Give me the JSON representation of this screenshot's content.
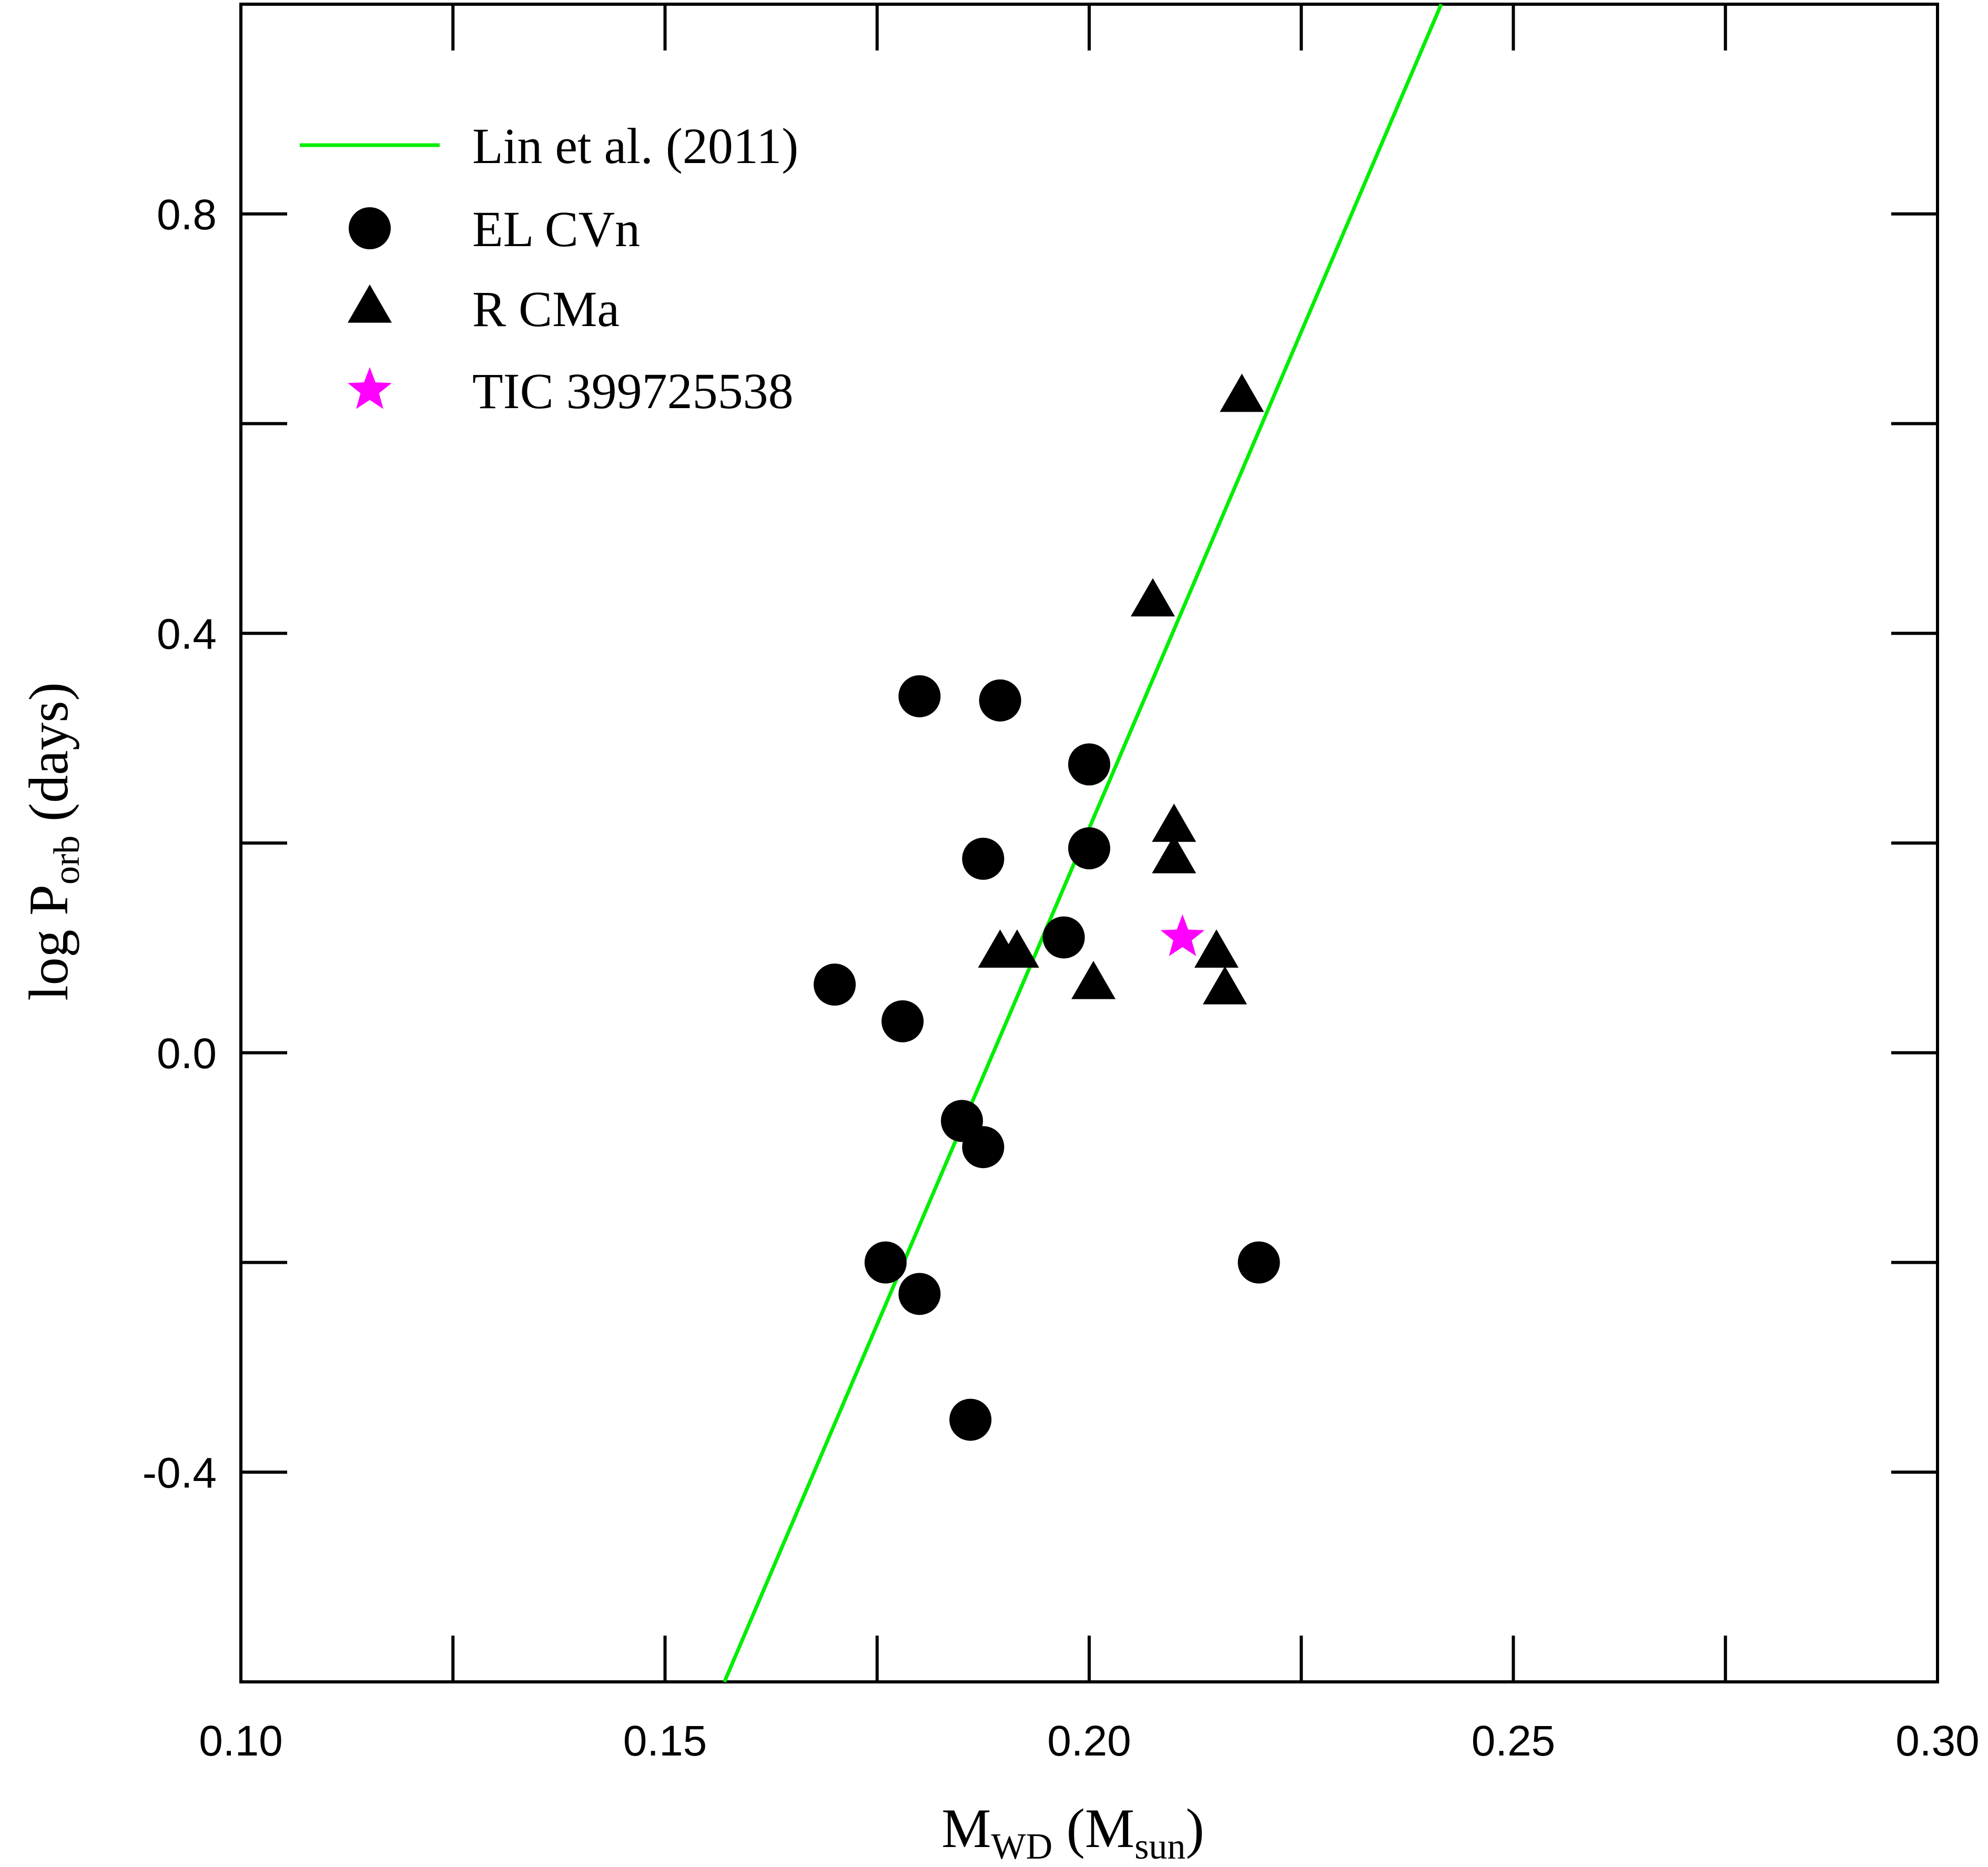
{
  "chart_data": {
    "type": "scatter",
    "xlabel": {
      "main": "M",
      "sub": "WD",
      "paren_main": "M",
      "paren_sub": "sun"
    },
    "ylabel": {
      "pre": "log P",
      "sub": "orb",
      "post": " (days)"
    },
    "xlim": [
      0.1,
      0.3
    ],
    "ylim": [
      -0.6,
      1.0
    ],
    "x_ticks": [
      "0.10",
      "0.15",
      "0.20",
      "0.25",
      "0.30"
    ],
    "x_tick_values": [
      0.1,
      0.15,
      0.2,
      0.25,
      0.3
    ],
    "x_minor_ticks": [
      0.125,
      0.175,
      0.225,
      0.275
    ],
    "y_ticks": [
      "-0.4",
      "0.0",
      "0.4",
      "0.8"
    ],
    "y_tick_values": [
      -0.4,
      0.0,
      0.4,
      0.8
    ],
    "y_minor_ticks": [
      -0.2,
      0.2,
      0.6
    ],
    "grid": false,
    "legend_position": "top-left",
    "series": [
      {
        "name": "Lin et al. (2011)",
        "kind": "line",
        "color": "#00ee00",
        "points": [
          [
            0.157,
            -0.6
          ],
          [
            0.2415,
            1.0
          ]
        ]
      },
      {
        "name": "EL CVn",
        "kind": "scatter",
        "marker": "circle",
        "color": "#000000",
        "points": [
          [
            0.18,
            0.34
          ],
          [
            0.1895,
            0.336
          ],
          [
            0.2,
            0.275
          ],
          [
            0.2,
            0.195
          ],
          [
            0.1875,
            0.185
          ],
          [
            0.197,
            0.11
          ],
          [
            0.17,
            0.065
          ],
          [
            0.178,
            0.03
          ],
          [
            0.185,
            -0.065
          ],
          [
            0.1875,
            -0.09
          ],
          [
            0.176,
            -0.2
          ],
          [
            0.18,
            -0.23
          ],
          [
            0.186,
            -0.35
          ],
          [
            0.22,
            -0.2
          ]
        ]
      },
      {
        "name": "R CMa",
        "kind": "scatter",
        "marker": "triangle",
        "color": "#000000",
        "points": [
          [
            0.218,
            0.625
          ],
          [
            0.2075,
            0.43
          ],
          [
            0.21,
            0.215
          ],
          [
            0.21,
            0.185
          ],
          [
            0.1895,
            0.095
          ],
          [
            0.1915,
            0.095
          ],
          [
            0.2005,
            0.065
          ],
          [
            0.215,
            0.095
          ],
          [
            0.216,
            0.06
          ]
        ]
      },
      {
        "name": "TIC 399725538",
        "kind": "scatter",
        "marker": "star",
        "color": "#ff00ff",
        "points": [
          [
            0.211,
            0.11
          ]
        ]
      }
    ]
  }
}
